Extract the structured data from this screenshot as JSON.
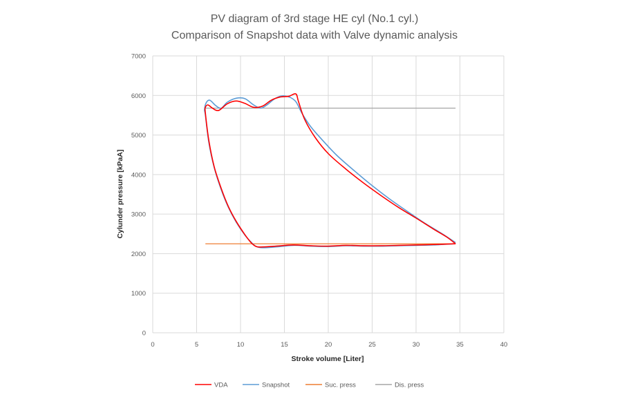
{
  "chart_data": {
    "type": "line",
    "title": "PV diagram of 3rd stage HE cyl (No.1 cyl.)",
    "subtitle": "Comparison of Snapshot data with Valve dynamic analysis",
    "xlabel": "Stroke volume [Liter]",
    "ylabel": "Cylunder pressure [kPaA]",
    "xlim": [
      0,
      40
    ],
    "ylim": [
      0,
      7000
    ],
    "x_ticks": [
      0,
      5,
      10,
      15,
      20,
      25,
      30,
      35,
      40
    ],
    "y_ticks": [
      0,
      1000,
      2000,
      3000,
      4000,
      5000,
      6000,
      7000
    ],
    "grid": true,
    "legend_position": "bottom",
    "series": [
      {
        "name": "VDA",
        "color": "#ff0000",
        "x": [
          34.5,
          33.5,
          32.0,
          30.0,
          28.0,
          26.0,
          24.0,
          22.0,
          20.0,
          18.5,
          17.3,
          16.6,
          16.3,
          15.5,
          14.5,
          13.5,
          12.5,
          11.5,
          10.5,
          9.5,
          8.5,
          7.5,
          6.8,
          6.3,
          6.0,
          6.0,
          6.4,
          7.0,
          7.8,
          8.6,
          9.5,
          10.5,
          11.2,
          11.8,
          12.5,
          14.0,
          16.0,
          18.0,
          20.0,
          22.0,
          24.0,
          26.0,
          28.0,
          30.0,
          32.0,
          34.5
        ],
        "y": [
          2250,
          2420,
          2620,
          2900,
          3170,
          3470,
          3790,
          4140,
          4530,
          4940,
          5400,
          5850,
          6040,
          5980,
          5960,
          5880,
          5730,
          5700,
          5800,
          5860,
          5790,
          5620,
          5680,
          5760,
          5700,
          5550,
          4850,
          4200,
          3650,
          3200,
          2820,
          2480,
          2280,
          2180,
          2170,
          2190,
          2220,
          2200,
          2190,
          2210,
          2200,
          2200,
          2210,
          2220,
          2230,
          2250
        ]
      },
      {
        "name": "Snapshot",
        "color": "#5b9bd5",
        "x": [
          34.5,
          33.0,
          31.0,
          29.0,
          27.0,
          25.0,
          23.0,
          21.0,
          19.5,
          18.0,
          17.0,
          16.2,
          15.0,
          14.0,
          13.0,
          12.3,
          11.5,
          10.5,
          9.5,
          8.5,
          7.8,
          7.2,
          6.5,
          6.1,
          5.9,
          6.0,
          6.4,
          7.0,
          7.8,
          8.6,
          9.5,
          10.5,
          11.3,
          11.8,
          12.5,
          14.0,
          16.0,
          18.0,
          20.0,
          22.0,
          24.0,
          26.0,
          28.0,
          30.0,
          32.0,
          34.5
        ],
        "y": [
          2280,
          2500,
          2770,
          3070,
          3380,
          3720,
          4090,
          4480,
          4830,
          5210,
          5550,
          5870,
          5990,
          5930,
          5760,
          5680,
          5760,
          5920,
          5930,
          5830,
          5680,
          5740,
          5880,
          5820,
          5640,
          5500,
          4800,
          4180,
          3620,
          3180,
          2800,
          2470,
          2270,
          2180,
          2150,
          2170,
          2210,
          2190,
          2180,
          2200,
          2190,
          2190,
          2200,
          2210,
          2220,
          2250
        ]
      },
      {
        "name": "Suc. press",
        "color": "#ed7d31",
        "x": [
          6.0,
          34.5
        ],
        "y": [
          2250,
          2250
        ]
      },
      {
        "name": "Dis. press",
        "color": "#a5a5a5",
        "x": [
          6.0,
          34.5
        ],
        "y": [
          5680,
          5680
        ]
      }
    ]
  }
}
